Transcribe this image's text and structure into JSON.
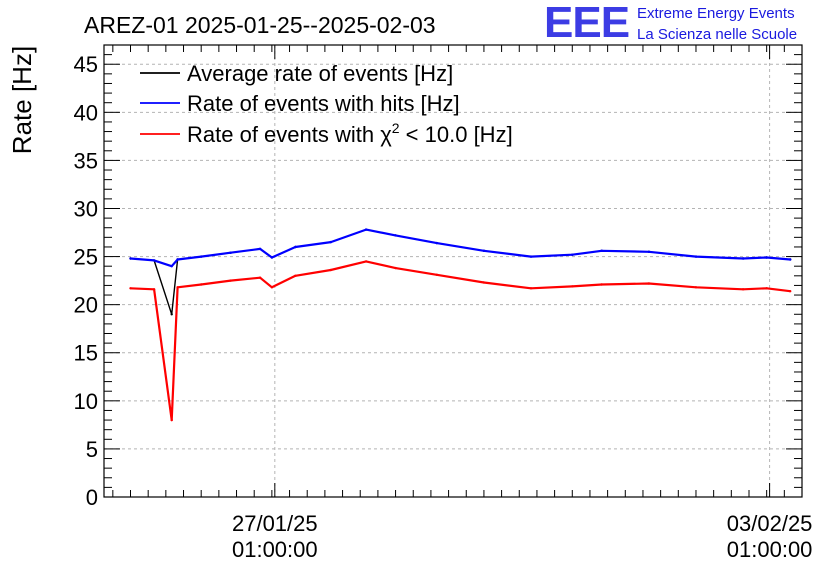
{
  "chart_data": {
    "type": "line",
    "title": "AREZ-01 2025-01-25--2025-02-03",
    "ylabel": "Rate [Hz]",
    "xlabel": "",
    "ylim": [
      0,
      47
    ],
    "yticks": [
      0,
      5,
      10,
      15,
      20,
      25,
      30,
      35,
      40,
      45
    ],
    "x_range_hours_from_2025-01-25_00:00": [
      -9,
      228
    ],
    "xticks": [
      {
        "line1": "27/01/25",
        "line2": "01:00:00",
        "hours": 49
      },
      {
        "line1": "03/02/25",
        "line2": "01:00:00",
        "hours": 217
      }
    ],
    "grid": true,
    "legend_position": "top-left",
    "series": [
      {
        "name": "Average rate of events [Hz]",
        "color": "#000000",
        "points": [
          [
            0,
            24.8
          ],
          [
            8,
            24.6
          ],
          [
            14,
            19.0
          ],
          [
            16,
            24.7
          ],
          [
            24,
            25.0
          ],
          [
            34,
            25.4
          ],
          [
            44,
            25.8
          ],
          [
            48,
            24.9
          ],
          [
            56,
            26.0
          ],
          [
            68,
            26.5
          ],
          [
            80,
            27.8
          ],
          [
            90,
            27.2
          ],
          [
            104,
            26.4
          ],
          [
            120,
            25.6
          ],
          [
            136,
            25.0
          ],
          [
            150,
            25.2
          ],
          [
            160,
            25.6
          ],
          [
            176,
            25.5
          ],
          [
            192,
            25.0
          ],
          [
            208,
            24.8
          ],
          [
            216,
            24.9
          ],
          [
            224,
            24.7
          ]
        ]
      },
      {
        "name": "Rate of events with hits [Hz]",
        "color": "#0000ff",
        "points": [
          [
            0,
            24.8
          ],
          [
            8,
            24.6
          ],
          [
            14,
            24.0
          ],
          [
            16,
            24.7
          ],
          [
            24,
            25.0
          ],
          [
            34,
            25.4
          ],
          [
            44,
            25.8
          ],
          [
            48,
            24.9
          ],
          [
            56,
            26.0
          ],
          [
            68,
            26.5
          ],
          [
            80,
            27.8
          ],
          [
            90,
            27.2
          ],
          [
            104,
            26.4
          ],
          [
            120,
            25.6
          ],
          [
            136,
            25.0
          ],
          [
            150,
            25.2
          ],
          [
            160,
            25.6
          ],
          [
            176,
            25.5
          ],
          [
            192,
            25.0
          ],
          [
            208,
            24.8
          ],
          [
            216,
            24.9
          ],
          [
            224,
            24.7
          ]
        ]
      },
      {
        "name": "Rate of events with χ² < 10.0 [Hz]",
        "color": "#ff0000",
        "points": [
          [
            0,
            21.7
          ],
          [
            8,
            21.6
          ],
          [
            14,
            8.0
          ],
          [
            16,
            21.8
          ],
          [
            24,
            22.1
          ],
          [
            34,
            22.5
          ],
          [
            44,
            22.8
          ],
          [
            48,
            21.8
          ],
          [
            56,
            23.0
          ],
          [
            68,
            23.6
          ],
          [
            80,
            24.5
          ],
          [
            90,
            23.8
          ],
          [
            104,
            23.1
          ],
          [
            120,
            22.3
          ],
          [
            136,
            21.7
          ],
          [
            150,
            21.9
          ],
          [
            160,
            22.1
          ],
          [
            176,
            22.2
          ],
          [
            192,
            21.8
          ],
          [
            208,
            21.6
          ],
          [
            216,
            21.7
          ],
          [
            224,
            21.4
          ]
        ]
      }
    ]
  },
  "legend": [
    {
      "key": "avg",
      "prefix": "Average rate of events [Hz]",
      "color": "#000000"
    },
    {
      "key": "hits",
      "prefix": "Rate of events with hits [Hz]",
      "color": "#0000ff"
    },
    {
      "key": "chi",
      "prefix": "Rate of events with χ",
      "sup": "2",
      "suffix": " < 10.0 [Hz]",
      "color": "#ff0000"
    }
  ],
  "logo": {
    "mark": "EEE",
    "line1": "Extreme Energy Events",
    "line2": "La Scienza nelle Scuole",
    "color": "#1a1adf"
  }
}
